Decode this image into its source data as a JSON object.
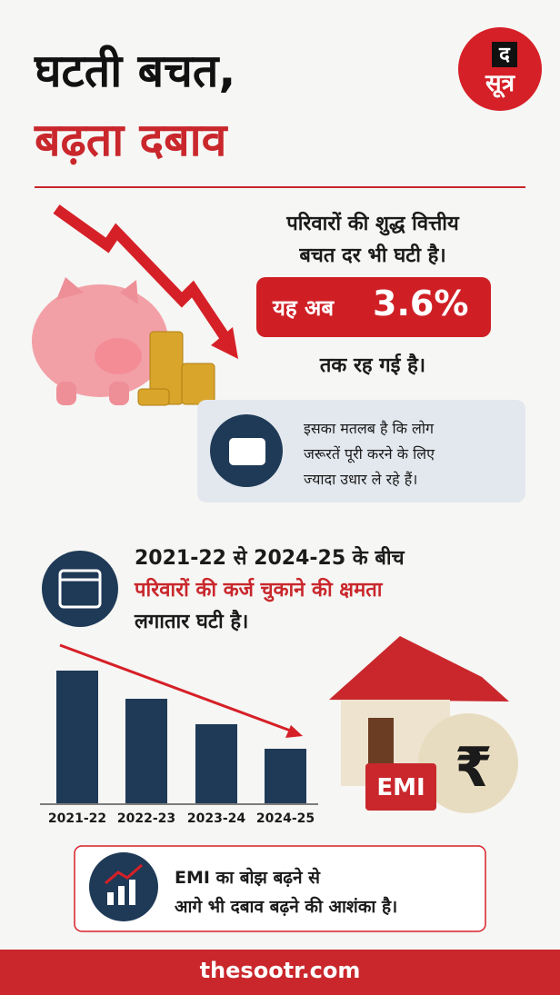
{
  "header": {
    "title_line1": "घटती बचत,",
    "title_line2": "बढ़ता दबाव",
    "logo_top": "द",
    "logo_bottom": "सूत्र"
  },
  "savings": {
    "line1": "परिवारों की शुद्ध वित्तीय",
    "line2": "बचत दर भी घटी है।",
    "highlight_prefix": "यह अब",
    "highlight_value": "3.6%",
    "line3": "तक रह गई है।"
  },
  "note": {
    "lines": [
      "इसका मतलब है कि लोग",
      "जरूरतें पूरी करने के लिए",
      "ज्यादा उधार ले रहे हैं।"
    ]
  },
  "debt": {
    "line1": "2021-22 से 2024-25 के बीच",
    "line2": "परिवारों की कर्ज चुकाने की क्षमता",
    "line3": "लगातार घटी है।",
    "years": [
      "2021-22",
      "2022-23",
      "2023-24",
      "2024-25"
    ]
  },
  "house": {
    "tag": "EMI"
  },
  "outlook": {
    "lines": [
      "EMI का बोझ बढ़ने से",
      "आगे भी दबाव बढ़ने की आशंका है।"
    ]
  },
  "footer": {
    "site": "thesootr.com"
  }
}
